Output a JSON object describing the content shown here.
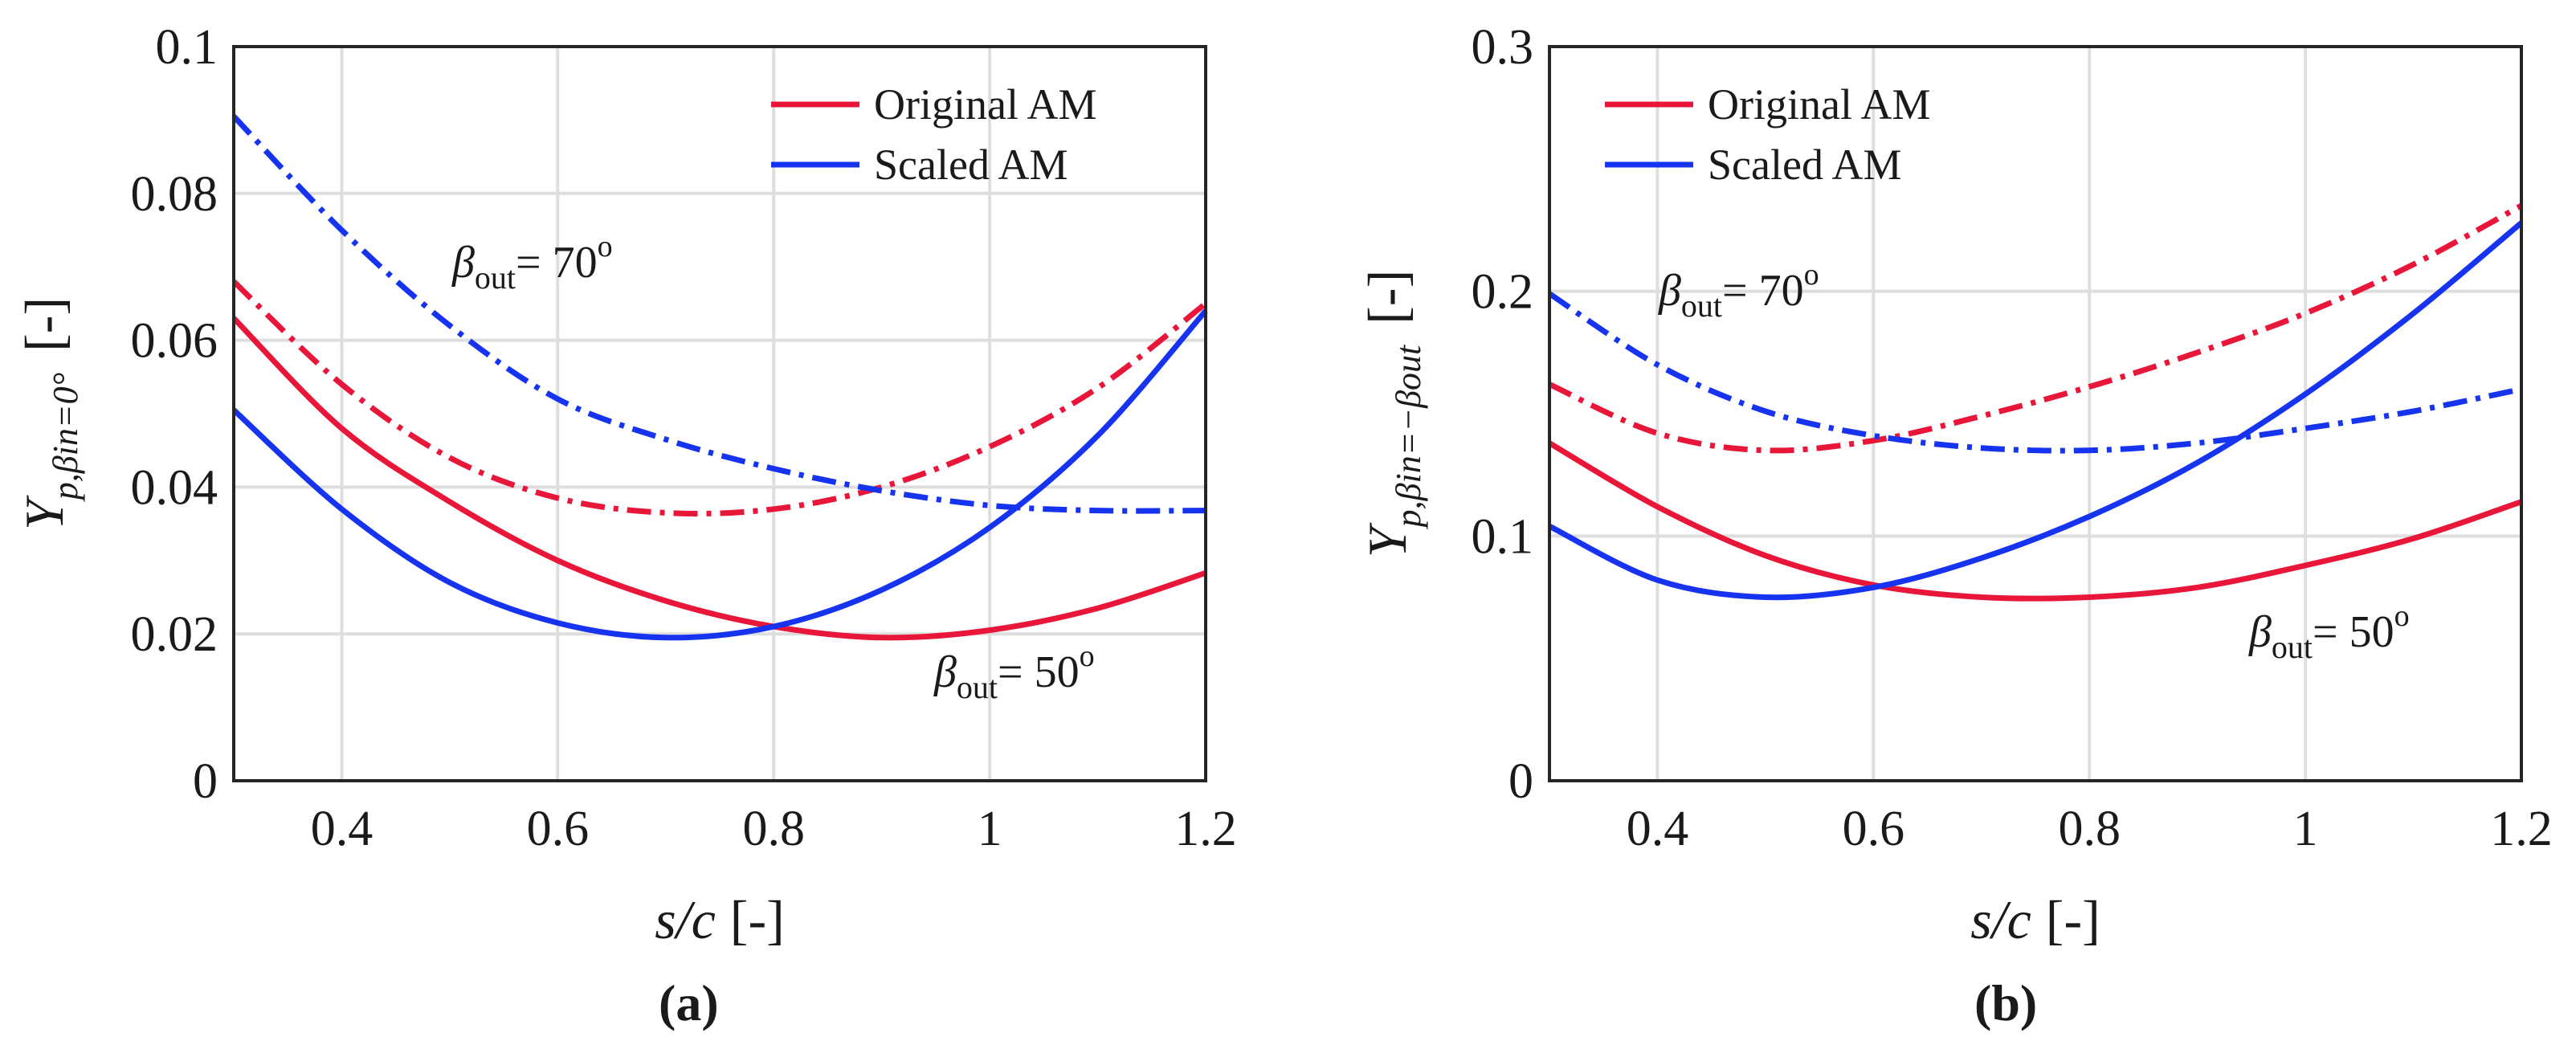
{
  "chart_data": [
    {
      "type": "line",
      "panel_label": "(a)",
      "xlabel": "s/c",
      "xunit": "[-]",
      "ylabel": "Y",
      "ylabel_sub": "p,βin=0°",
      "yunit": "[-]",
      "xlim": [
        0.3,
        1.2
      ],
      "ylim": [
        0,
        0.1
      ],
      "xticks": [
        0.4,
        0.6,
        0.8,
        1.0,
        1.2
      ],
      "xtick_labels": [
        "0.4",
        "0.6",
        "0.8",
        "1",
        "1.2"
      ],
      "yticks": [
        0,
        0.02,
        0.04,
        0.06,
        0.08,
        0.1
      ],
      "ytick_labels": [
        "0",
        "0.02",
        "0.04",
        "0.06",
        "0.08",
        "0.1"
      ],
      "grid": true,
      "legend": [
        {
          "label": "Original AM",
          "color": "#e8173a"
        },
        {
          "label": "Scaled AM",
          "color": "#1634f0"
        }
      ],
      "annotations": [
        {
          "beta": "β",
          "sub": "out",
          "text": "= 70",
          "sup": "o",
          "x": 0.5,
          "y": 0.07
        },
        {
          "beta": "β",
          "sub": "out",
          "text": "= 50",
          "sup": "o",
          "x": 0.94,
          "y": 0.013
        }
      ],
      "series": [
        {
          "name": "Original AM, β_out = 50°",
          "color": "#e8173a",
          "style": "solid",
          "x": [
            0.3,
            0.4,
            0.5,
            0.6,
            0.7,
            0.8,
            0.9,
            1.0,
            1.1,
            1.2
          ],
          "y": [
            0.063,
            0.048,
            0.038,
            0.03,
            0.0245,
            0.021,
            0.0195,
            0.0205,
            0.0235,
            0.0283
          ]
        },
        {
          "name": "Scaled AM, β_out = 50°",
          "color": "#1634f0",
          "style": "solid",
          "x": [
            0.3,
            0.4,
            0.5,
            0.6,
            0.7,
            0.8,
            0.9,
            1.0,
            1.1,
            1.2
          ],
          "y": [
            0.0505,
            0.037,
            0.027,
            0.0215,
            0.0195,
            0.021,
            0.026,
            0.0345,
            0.047,
            0.064
          ]
        },
        {
          "name": "Original AM, β_out = 70°",
          "color": "#e8173a",
          "style": "dashdot",
          "x": [
            0.3,
            0.4,
            0.5,
            0.6,
            0.7,
            0.8,
            0.9,
            1.0,
            1.1,
            1.2
          ],
          "y": [
            0.068,
            0.054,
            0.044,
            0.0385,
            0.0365,
            0.037,
            0.04,
            0.0455,
            0.0535,
            0.065
          ]
        },
        {
          "name": "Scaled AM, β_out = 70°",
          "color": "#1634f0",
          "style": "dashdot",
          "x": [
            0.3,
            0.4,
            0.5,
            0.6,
            0.7,
            0.8,
            0.9,
            1.0,
            1.1,
            1.2
          ],
          "y": [
            0.0905,
            0.075,
            0.062,
            0.052,
            0.0465,
            0.0425,
            0.0395,
            0.0375,
            0.0368,
            0.0368
          ]
        }
      ]
    },
    {
      "type": "line",
      "panel_label": "(b)",
      "xlabel": "s/c",
      "xunit": "[-]",
      "ylabel": "Y",
      "ylabel_sub": "p,βin=−βout",
      "yunit": "[-]",
      "xlim": [
        0.3,
        1.2
      ],
      "ylim": [
        0,
        0.3
      ],
      "xticks": [
        0.4,
        0.6,
        0.8,
        1.0,
        1.2
      ],
      "xtick_labels": [
        "0.4",
        "0.6",
        "0.8",
        "1",
        "1.2"
      ],
      "yticks": [
        0,
        0.1,
        0.2,
        0.3
      ],
      "ytick_labels": [
        "0",
        "0.1",
        "0.2",
        "0.3"
      ],
      "grid": true,
      "legend": [
        {
          "label": "Original AM",
          "color": "#e8173a"
        },
        {
          "label": "Scaled AM",
          "color": "#1634f0"
        }
      ],
      "annotations": [
        {
          "beta": "β",
          "sub": "out",
          "text": "= 70",
          "sup": "o",
          "x": 0.4,
          "y": 0.19
        },
        {
          "beta": "β",
          "sub": "out",
          "text": "= 50",
          "sup": "o",
          "x": 0.95,
          "y": 0.055
        }
      ],
      "series": [
        {
          "name": "Original AM, β_out = 50°",
          "color": "#e8173a",
          "style": "solid",
          "x": [
            0.3,
            0.4,
            0.5,
            0.6,
            0.7,
            0.8,
            0.9,
            1.0,
            1.1,
            1.2
          ],
          "y": [
            0.138,
            0.112,
            0.092,
            0.08,
            0.075,
            0.075,
            0.079,
            0.088,
            0.099,
            0.114
          ]
        },
        {
          "name": "Scaled AM, β_out = 50°",
          "color": "#1634f0",
          "style": "solid",
          "x": [
            0.3,
            0.4,
            0.5,
            0.6,
            0.7,
            0.8,
            0.9,
            1.0,
            1.1,
            1.2
          ],
          "y": [
            0.104,
            0.082,
            0.075,
            0.079,
            0.091,
            0.108,
            0.13,
            0.158,
            0.191,
            0.228
          ]
        },
        {
          "name": "Original AM, β_out = 70°",
          "color": "#e8173a",
          "style": "dashdot",
          "x": [
            0.3,
            0.4,
            0.5,
            0.6,
            0.7,
            0.8,
            0.9,
            1.0,
            1.1,
            1.2
          ],
          "y": [
            0.162,
            0.142,
            0.135,
            0.139,
            0.149,
            0.161,
            0.175,
            0.191,
            0.211,
            0.235
          ]
        },
        {
          "name": "Scaled AM, β_out = 70°",
          "color": "#1634f0",
          "style": "dashdot",
          "x": [
            0.3,
            0.4,
            0.5,
            0.6,
            0.7,
            0.8,
            0.9,
            1.0,
            1.1,
            1.2
          ],
          "y": [
            0.199,
            0.17,
            0.151,
            0.141,
            0.136,
            0.135,
            0.138,
            0.144,
            0.151,
            0.16
          ]
        }
      ]
    }
  ]
}
